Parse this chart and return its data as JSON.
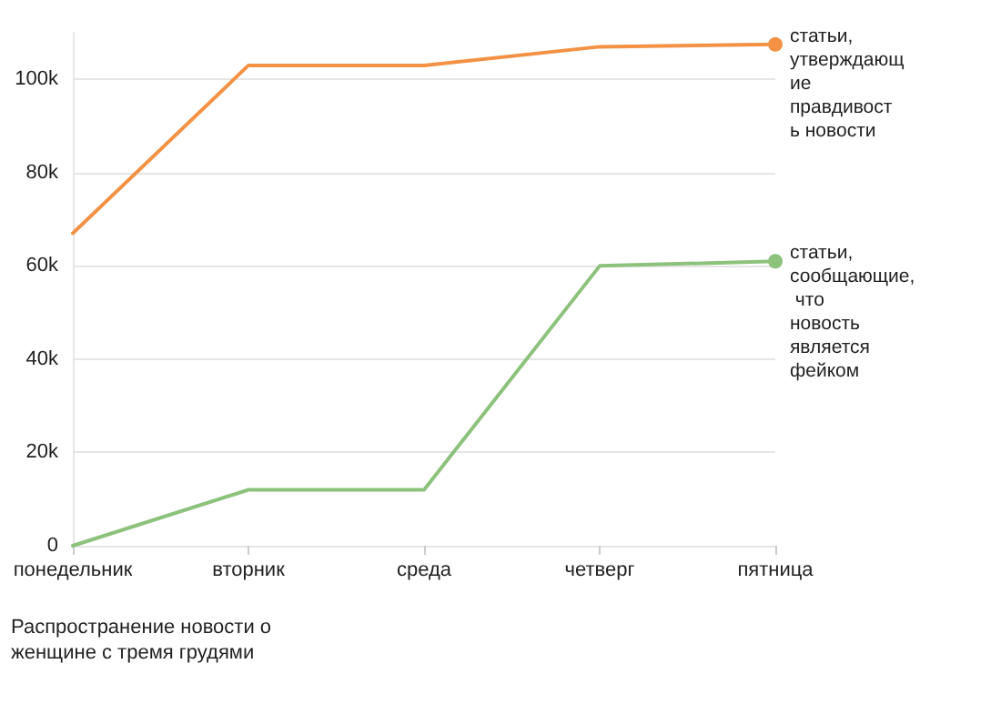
{
  "chart_data": {
    "type": "line",
    "categories": [
      "понедельник",
      "вторник",
      "среда",
      "четверг",
      "пятница"
    ],
    "series": [
      {
        "name": "статьи, утверждающие правдивость новости",
        "color": "#f39244",
        "values": [
          67000,
          103000,
          103000,
          107000,
          107500
        ]
      },
      {
        "name": "статьи, сообщающие, что новость является фейком",
        "color": "#8dc27c",
        "values": [
          0,
          12000,
          12000,
          60000,
          61000
        ]
      }
    ],
    "ylim": [
      0,
      110000
    ],
    "yticks": [
      0,
      {
        "value": 20000,
        "label": "20k"
      },
      {
        "value": 40000,
        "label": "40k"
      },
      {
        "value": 60000,
        "label": "60k"
      },
      {
        "value": 80000,
        "label": "80k"
      },
      {
        "value": 100000,
        "label": "100k"
      }
    ],
    "grid": "y",
    "legend": false,
    "annotations": [
      "Распространение новости о женщине с тремя грудями"
    ]
  }
}
